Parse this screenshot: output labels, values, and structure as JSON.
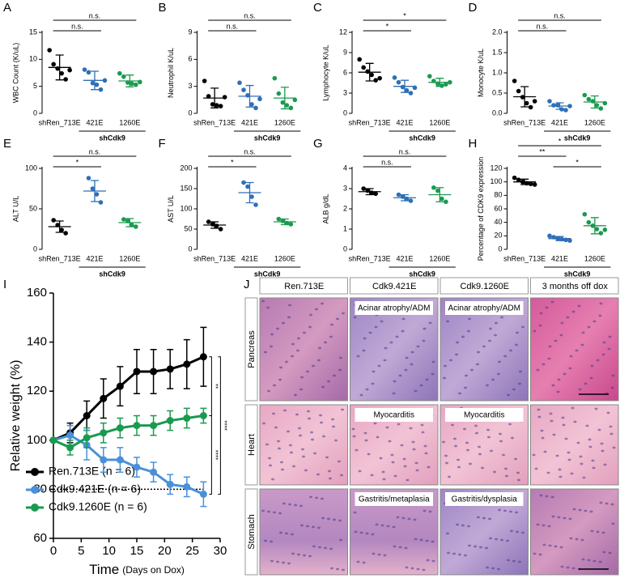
{
  "chart_data": [
    {
      "type": "strip",
      "panel": "A",
      "ylabel": "WBC Count (K/uL)",
      "categories": [
        "shRen_713E",
        "421E",
        "1260E"
      ],
      "group_label": "shCdk9",
      "colors": [
        "#000000",
        "#2e6fb7",
        "#1a9a50"
      ],
      "points": [
        [
          11.7,
          9.1,
          8.3,
          7.4,
          6.3,
          8.0
        ],
        [
          8.1,
          7.6,
          5.6,
          5.3,
          4.4,
          6.1
        ],
        [
          7.4,
          6.8,
          5.7,
          5.5,
          5.3,
          5.8
        ]
      ],
      "means": [
        8.5,
        6.1,
        6.0
      ],
      "sd": [
        2.3,
        1.7,
        1.1
      ],
      "ylim": [
        0,
        15
      ],
      "yticks": [
        0,
        5,
        10,
        15
      ],
      "comparisons": [
        {
          "from": 0,
          "to": 1,
          "label": "n.s."
        },
        {
          "from": 0,
          "to": 2,
          "label": "n.s."
        }
      ]
    },
    {
      "type": "strip",
      "panel": "B",
      "ylabel": "Neutrophil K/uL",
      "categories": [
        "shRen_713E",
        "421E",
        "1260E"
      ],
      "group_label": "shCdk9",
      "colors": [
        "#000000",
        "#2e6fb7",
        "#1a9a50"
      ],
      "points": [
        [
          3.6,
          1.9,
          1.0,
          0.9,
          0.8,
          1.8
        ],
        [
          3.4,
          2.6,
          2.0,
          1.0,
          0.6,
          1.6
        ],
        [
          3.9,
          2.2,
          1.2,
          0.9,
          0.6,
          1.5
        ]
      ],
      "means": [
        1.7,
        1.9,
        1.7
      ],
      "sd": [
        1.1,
        1.2,
        1.2
      ],
      "ylim": [
        0,
        9
      ],
      "yticks": [
        0,
        3,
        6,
        9
      ],
      "comparisons": [
        {
          "from": 0,
          "to": 1,
          "label": "n.s."
        },
        {
          "from": 0,
          "to": 2,
          "label": "n.s."
        }
      ]
    },
    {
      "type": "strip",
      "panel": "C",
      "ylabel": "Lymphocyte K/uL",
      "categories": [
        "shRen_713E",
        "421E",
        "1260E"
      ],
      "group_label": "shCdk9",
      "colors": [
        "#000000",
        "#2e6fb7",
        "#1a9a50"
      ],
      "points": [
        [
          8.0,
          6.8,
          6.2,
          5.7,
          4.9,
          5.2
        ],
        [
          5.3,
          4.6,
          3.9,
          3.4,
          3.0,
          3.8
        ],
        [
          5.5,
          4.8,
          4.4,
          4.1,
          4.3,
          4.6
        ]
      ],
      "means": [
        6.1,
        4.0,
        4.6
      ],
      "sd": [
        1.3,
        0.9,
        0.6
      ],
      "ylim": [
        0,
        12
      ],
      "yticks": [
        0,
        3,
        6,
        9,
        12
      ],
      "comparisons": [
        {
          "from": 0,
          "to": 1,
          "label": "*"
        },
        {
          "from": 0,
          "to": 2,
          "label": "*"
        }
      ]
    },
    {
      "type": "strip",
      "panel": "D",
      "ylabel": "Monocyte K/uL",
      "categories": [
        "shRen_713E",
        "421E",
        "1260E"
      ],
      "group_label": "shCdk9",
      "colors": [
        "#000000",
        "#2e6fb7",
        "#1a9a50"
      ],
      "points": [
        [
          0.8,
          0.55,
          0.4,
          0.25,
          0.15,
          0.3
        ],
        [
          0.3,
          0.2,
          0.2,
          0.1,
          0.08,
          0.18
        ],
        [
          0.45,
          0.35,
          0.3,
          0.2,
          0.12,
          0.25
        ]
      ],
      "means": [
        0.41,
        0.18,
        0.28
      ],
      "sd": [
        0.25,
        0.08,
        0.15
      ],
      "ylim": [
        0,
        2
      ],
      "yticks": [
        {
          "value": 0,
          "label": "0.0"
        },
        {
          "value": 0.5,
          "label": "0.5"
        },
        {
          "value": 1,
          "label": "1.0"
        },
        {
          "value": 1.5,
          "label": "1.5"
        },
        {
          "value": 2,
          "label": "2.0"
        }
      ],
      "comparisons": [
        {
          "from": 0,
          "to": 1,
          "label": "n.s."
        },
        {
          "from": 0,
          "to": 2,
          "label": "n.s."
        }
      ]
    },
    {
      "type": "strip",
      "panel": "E",
      "ylabel": "ALT U/L",
      "categories": [
        "shRen_713E",
        "421E",
        "1260E"
      ],
      "group_label": "shCdk9",
      "colors": [
        "#000000",
        "#2e6fb7",
        "#1a9a50"
      ],
      "points": [
        [
          36,
          30,
          24,
          20
        ],
        [
          88,
          75,
          68,
          58
        ],
        [
          37,
          35,
          30,
          28
        ]
      ],
      "means": [
        28,
        72,
        33
      ],
      "sd": [
        7,
        13,
        5
      ],
      "ylim": [
        0,
        100
      ],
      "yticks": [
        0,
        50,
        100
      ],
      "comparisons": [
        {
          "from": 0,
          "to": 1,
          "label": "*"
        },
        {
          "from": 0,
          "to": 2,
          "label": "n.s."
        }
      ]
    },
    {
      "type": "strip",
      "panel": "F",
      "ylabel": "AST U/L",
      "categories": [
        "shRen_713E",
        "421E",
        "1260E"
      ],
      "group_label": "shCdk9",
      "colors": [
        "#000000",
        "#2e6fb7",
        "#1a9a50"
      ],
      "points": [
        [
          68,
          62,
          58,
          50
        ],
        [
          165,
          155,
          130,
          110
        ],
        [
          75,
          70,
          65,
          62
        ]
      ],
      "means": [
        60,
        140,
        68
      ],
      "sd": [
        8,
        25,
        7
      ],
      "ylim": [
        0,
        200
      ],
      "yticks": [
        0,
        50,
        100,
        150,
        200
      ],
      "comparisons": [
        {
          "from": 0,
          "to": 1,
          "label": "*"
        },
        {
          "from": 0,
          "to": 2,
          "label": "n.s."
        }
      ]
    },
    {
      "type": "strip",
      "panel": "G",
      "ylabel": "ALB g/dL",
      "categories": [
        "shRen_713E",
        "421E",
        "1260E"
      ],
      "group_label": "shCdk9",
      "colors": [
        "#000000",
        "#2e6fb7",
        "#1a9a50"
      ],
      "points": [
        [
          3.0,
          2.9,
          2.8,
          2.75
        ],
        [
          2.7,
          2.6,
          2.5,
          2.4
        ],
        [
          3.05,
          2.9,
          2.5,
          2.35
        ]
      ],
      "means": [
        2.85,
        2.55,
        2.7
      ],
      "sd": [
        0.15,
        0.15,
        0.35
      ],
      "ylim": [
        0,
        4
      ],
      "yticks": [
        0,
        1,
        2,
        3,
        4
      ],
      "comparisons": [
        {
          "from": 0,
          "to": 1,
          "label": "n.s."
        },
        {
          "from": 0,
          "to": 2,
          "label": "n.s."
        }
      ]
    },
    {
      "type": "strip",
      "panel": "H",
      "ylabel": "Percentage of CDK9 expression",
      "categories": [
        "shRen_713E",
        "421E",
        "1260E"
      ],
      "group_label": "shCdk9",
      "colors": [
        "#000000",
        "#2e6fb7",
        "#1a9a50"
      ],
      "points": [
        [
          106,
          103,
          100,
          98,
          97,
          96
        ],
        [
          20,
          18,
          16,
          15,
          14,
          13
        ],
        [
          52,
          40,
          35,
          30,
          24,
          29
        ]
      ],
      "means": [
        100,
        16,
        35
      ],
      "sd": [
        4,
        3,
        12
      ],
      "ylim": [
        0,
        120
      ],
      "yticks": [
        0,
        20,
        40,
        60,
        80,
        100,
        120
      ],
      "comparisons": [
        {
          "from": 1,
          "to": 2,
          "label": "*"
        },
        {
          "from": 0,
          "to": 1,
          "label": "**"
        },
        {
          "from": 0,
          "to": 2,
          "label": "*"
        }
      ]
    },
    {
      "type": "line",
      "panel": "I",
      "ylabel": "Relative weight (%)",
      "xlabel": "Time",
      "xlabel_note": "(Days on Dox)",
      "x": [
        0,
        3,
        6,
        9,
        12,
        15,
        18,
        21,
        24,
        27
      ],
      "xlim": [
        0,
        30
      ],
      "xticks": [
        0,
        5,
        10,
        15,
        20,
        25,
        30
      ],
      "ylim": [
        60,
        160
      ],
      "yticks": [
        60,
        80,
        100,
        120,
        140,
        160
      ],
      "reference_line": 80,
      "legend": "lower left",
      "series": [
        {
          "name": "Ren.713E (n = 6)",
          "color": "#000000",
          "values": [
            100,
            103,
            110,
            117,
            122,
            128,
            128,
            129,
            131,
            134
          ],
          "errors": [
            0,
            4,
            6,
            8,
            8,
            9,
            9,
            8,
            10,
            12
          ]
        },
        {
          "name": "Cdk9.421E (n = 6)",
          "color": "#4a90d9",
          "values": [
            100,
            102,
            98,
            92,
            92,
            89,
            87,
            82,
            81,
            78
          ],
          "errors": [
            0,
            4,
            6,
            5,
            5,
            4,
            4,
            4,
            4,
            5
          ]
        },
        {
          "name": "Cdk9.1260E (n = 6)",
          "color": "#1a9a50",
          "values": [
            100,
            97,
            101,
            103,
            105,
            106,
            106,
            108,
            109,
            110
          ],
          "errors": [
            0,
            3,
            4,
            4,
            4,
            4,
            4,
            4,
            4,
            3
          ]
        }
      ],
      "brackets": [
        {
          "from": 0,
          "to": 2,
          "label": "**"
        },
        {
          "from": 0,
          "to": 1,
          "label": "****"
        },
        {
          "from": 2,
          "to": 1,
          "label": "****"
        }
      ]
    }
  ],
  "histology": {
    "panel": "J",
    "columns": [
      "Ren.713E",
      "Cdk9.421E",
      "Cdk9.1260E",
      "3 months off dox"
    ],
    "rows": [
      "Pancreas",
      "Heart",
      "Stomach"
    ],
    "annotations": [
      {
        "row": 0,
        "col": 1,
        "text": "Acinar atrophy/ADM"
      },
      {
        "row": 0,
        "col": 2,
        "text": "Acinar atrophy/ADM"
      },
      {
        "row": 1,
        "col": 1,
        "text": "Myocarditis"
      },
      {
        "row": 1,
        "col": 2,
        "text": "Myocarditis"
      },
      {
        "row": 2,
        "col": 1,
        "text": "Gastritis/metaplasia"
      },
      {
        "row": 2,
        "col": 2,
        "text": "Gastritis/dysplasia"
      }
    ]
  }
}
